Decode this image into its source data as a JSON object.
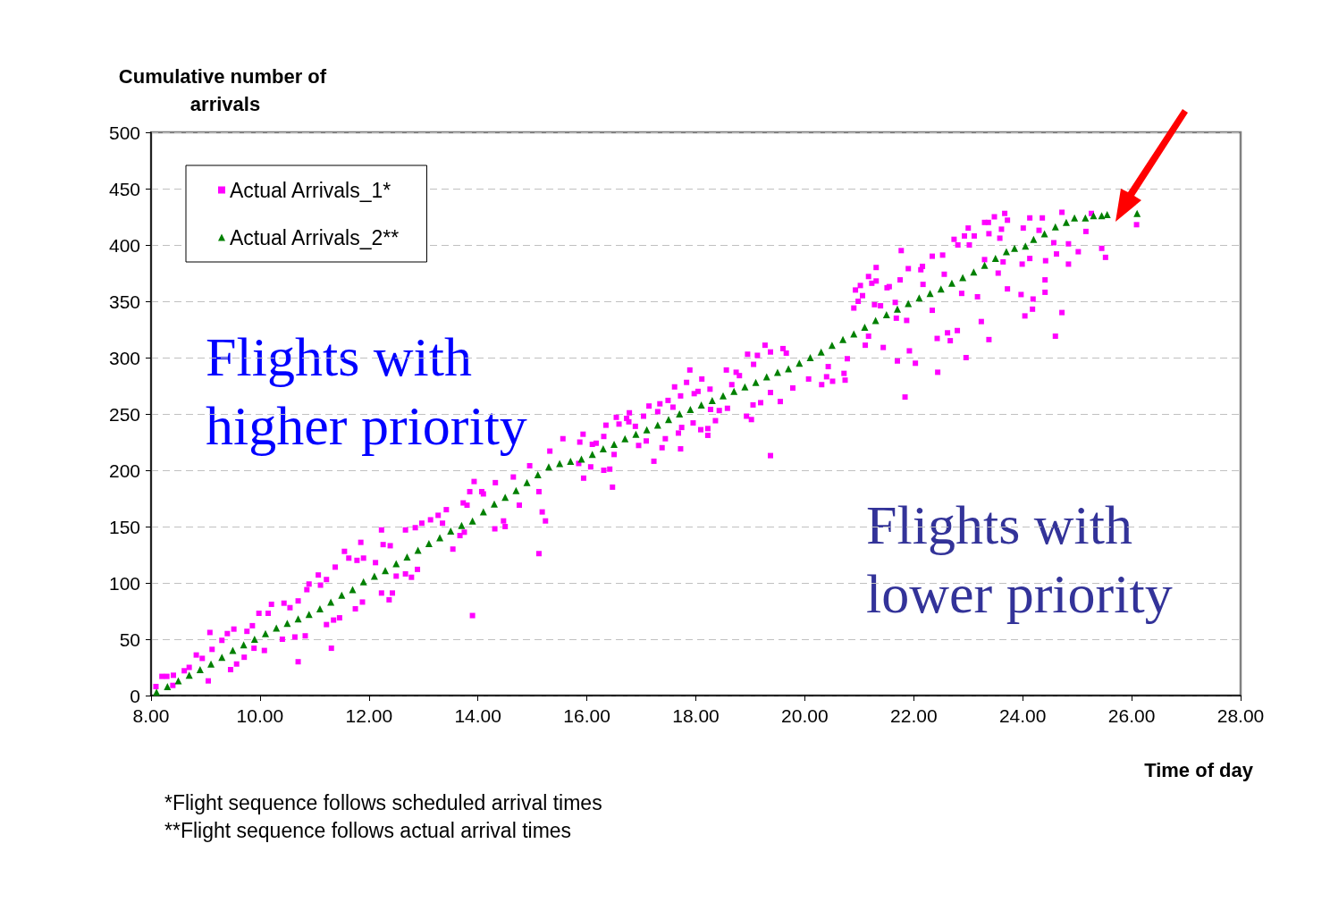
{
  "chart_data": {
    "type": "scatter",
    "ylabel": "Cumulative number of arrivals",
    "xlabel": "Time of day",
    "xlim": [
      8,
      28
    ],
    "xticks": [
      {
        "value": 8,
        "label": "8.00"
      },
      {
        "value": 10,
        "label": "10.00"
      },
      {
        "value": 12,
        "label": "12.00"
      },
      {
        "value": 14,
        "label": "14.00"
      },
      {
        "value": 16,
        "label": "16.00"
      },
      {
        "value": 18,
        "label": "18.00"
      },
      {
        "value": 20,
        "label": "20.00"
      },
      {
        "value": 22,
        "label": "22.00"
      },
      {
        "value": 24,
        "label": "24.00"
      },
      {
        "value": 26,
        "label": "26.00"
      },
      {
        "value": 28,
        "label": "28.00"
      }
    ],
    "ylim": [
      0,
      500
    ],
    "yticks": [
      0,
      50,
      100,
      150,
      200,
      250,
      300,
      350,
      400,
      450,
      500
    ],
    "grid": "y",
    "legend": "top left",
    "annotations": [
      "Flights with higher priority",
      "Flights with lower priority",
      "*Flight sequence follows scheduled arrival times",
      "**Flight sequence follows actual arrival times"
    ],
    "series": [
      {
        "name": "Actual Arrivals_1*",
        "color": "#ff00ff",
        "marker": "square",
        "x": [
          8.09,
          8.2,
          8.29,
          8.41,
          8.4,
          8.61,
          8.7,
          8.83,
          8.94,
          9.08,
          9.05,
          9.12,
          9.3,
          9.4,
          9.52,
          9.46,
          9.57,
          9.71,
          9.76,
          9.86,
          9.89,
          10.08,
          9.98,
          10.15,
          10.21,
          10.41,
          10.44,
          10.55,
          10.64,
          10.7,
          10.7,
          10.83,
          10.86,
          10.9,
          11.07,
          11.11,
          11.22,
          11.22,
          11.31,
          11.38,
          11.35,
          11.46,
          11.55,
          11.63,
          11.78,
          11.85,
          11.9,
          11.75,
          11.88,
          12.12,
          12.23,
          12.23,
          12.26,
          12.39,
          12.5,
          12.37,
          12.43,
          12.67,
          12.67,
          12.78,
          12.85,
          12.89,
          12.97,
          13.13,
          13.27,
          13.35,
          13.42,
          13.54,
          13.67,
          13.75,
          13.73,
          13.8,
          13.9,
          13.93,
          13.85,
          14.07,
          14.1,
          14.32,
          14.31,
          14.5,
          14.47,
          14.65,
          14.76,
          14.95,
          15.12,
          15.18,
          15.12,
          15.24,
          15.32,
          15.56,
          15.93,
          15.87,
          15.85,
          15.94,
          16.07,
          16.1,
          16.17,
          16.31,
          16.35,
          16.31,
          16.42,
          16.47,
          16.5,
          16.54,
          16.59,
          16.73,
          16.78,
          16.77,
          16.89,
          16.95,
          17.04,
          17.09,
          17.14,
          17.23,
          17.3,
          17.34,
          17.38,
          17.44,
          17.49,
          17.58,
          17.61,
          17.68,
          17.72,
          17.72,
          17.74,
          17.83,
          17.89,
          17.95,
          17.97,
          18.04,
          18.09,
          18.11,
          18.22,
          18.26,
          18.22,
          18.27,
          18.36,
          18.43,
          18.56,
          18.58,
          18.66,
          18.74,
          18.8,
          18.93,
          18.95,
          19.02,
          19.05,
          19.06,
          19.13,
          19.19,
          19.27,
          19.37,
          19.37,
          19.37,
          19.55,
          19.6,
          19.66,
          19.78,
          20.07,
          20.31,
          20.4,
          20.43,
          20.51,
          20.72,
          20.74,
          20.78,
          20.9,
          20.93,
          21.02,
          21.06,
          20.98,
          21.11,
          21.17,
          21.17,
          21.23,
          21.28,
          21.31,
          21.31,
          21.39,
          21.44,
          21.51,
          21.55,
          21.66,
          21.68,
          21.7,
          21.75,
          21.77,
          21.84,
          21.87,
          21.9,
          21.92,
          22.03,
          22.13,
          22.16,
          22.17,
          22.34,
          22.34,
          22.43,
          22.44,
          22.53,
          22.56,
          22.62,
          22.67,
          22.74,
          22.8,
          22.81,
          22.88,
          22.93,
          22.96,
          23,
          23.02,
          23.11,
          23.17,
          23.24,
          23.3,
          23.3,
          23.37,
          23.38,
          23.38,
          23.48,
          23.55,
          23.58,
          23.61,
          23.64,
          23.67,
          23.72,
          23.72,
          23.97,
          23.99,
          24.01,
          24.04,
          24.13,
          24.13,
          24.18,
          24.19,
          24.3,
          24.36,
          24.41,
          24.41,
          24.42,
          24.57,
          24.6,
          24.62,
          24.72,
          24.72,
          24.84,
          24.84,
          25.02,
          25.16,
          25.26,
          25.45,
          25.52,
          26.09
        ],
        "values": [
          8,
          17,
          17,
          18,
          9,
          22,
          25,
          36,
          33,
          56,
          13,
          41,
          49,
          55,
          59,
          23,
          28,
          34,
          57,
          62,
          42,
          40,
          73,
          73,
          81,
          50,
          82,
          78,
          52,
          84,
          30,
          53,
          94,
          99,
          107,
          98,
          103,
          63,
          42,
          114,
          67,
          69,
          128,
          122,
          120,
          136,
          122,
          77,
          83,
          118,
          147,
          91,
          134,
          133,
          106,
          85,
          91,
          147,
          108,
          105,
          149,
          112,
          153,
          156,
          160,
          153,
          165,
          130,
          142,
          145,
          171,
          169,
          71,
          190,
          181,
          181,
          179,
          189,
          148,
          150,
          155,
          194,
          169,
          204,
          181,
          163,
          126,
          155,
          217,
          228,
          232,
          225,
          206,
          193,
          203,
          223,
          224,
          230,
          240,
          200,
          201,
          185,
          214,
          247,
          241,
          246,
          251,
          243,
          239,
          222,
          248,
          226,
          257,
          208,
          252,
          259,
          220,
          228,
          262,
          256,
          274,
          233,
          219,
          266,
          238,
          278,
          289,
          242,
          268,
          270,
          236,
          281,
          237,
          272,
          231,
          254,
          244,
          253,
          289,
          255,
          276,
          287,
          284,
          248,
          303,
          245,
          258,
          294,
          302,
          260,
          311,
          213,
          269,
          305,
          261,
          308,
          304,
          273,
          281,
          276,
          283,
          292,
          279,
          286,
          280,
          299,
          344,
          360,
          364,
          355,
          350,
          311,
          319,
          372,
          366,
          347,
          380,
          368,
          346,
          309,
          362,
          363,
          349,
          335,
          297,
          369,
          395,
          265,
          333,
          379,
          306,
          295,
          378,
          381,
          365,
          342,
          390,
          317,
          287,
          391,
          374,
          322,
          315,
          405,
          324,
          400,
          357,
          408,
          300,
          415,
          400,
          408,
          354,
          332,
          420,
          387,
          420,
          410,
          316,
          425,
          375,
          406,
          414,
          385,
          428,
          422,
          361,
          356,
          383,
          415,
          337,
          424,
          388,
          343,
          352,
          413,
          424,
          369,
          358,
          386,
          402,
          319,
          392,
          340,
          429,
          401,
          383,
          394,
          412,
          428,
          397,
          389,
          418
        ]
      },
      {
        "name": "Actual Arrivals_2**",
        "color": "#008000",
        "marker": "triangle",
        "x": [
          8.1,
          8.3,
          8.5,
          8.7,
          8.9,
          9.1,
          9.3,
          9.5,
          9.7,
          9.9,
          10.1,
          10.3,
          10.5,
          10.7,
          10.9,
          11.1,
          11.3,
          11.5,
          11.7,
          11.9,
          12.1,
          12.3,
          12.5,
          12.7,
          12.9,
          13.1,
          13.3,
          13.5,
          13.7,
          13.9,
          14.1,
          14.3,
          14.5,
          14.7,
          14.9,
          15.1,
          15.3,
          15.5,
          15.7,
          15.9,
          16.1,
          16.3,
          16.5,
          16.7,
          16.9,
          17.1,
          17.3,
          17.5,
          17.7,
          17.9,
          18.1,
          18.3,
          18.5,
          18.7,
          18.9,
          19.1,
          19.3,
          19.5,
          19.7,
          19.9,
          20.1,
          20.3,
          20.5,
          20.7,
          20.9,
          21.1,
          21.3,
          21.5,
          21.7,
          21.9,
          22.1,
          22.3,
          22.5,
          22.7,
          22.9,
          23.1,
          23.3,
          23.5,
          23.7,
          23.85,
          24.05,
          24.2,
          24.4,
          24.6,
          24.8,
          24.95,
          25.15,
          25.3,
          25.45,
          25.55,
          26.1
        ],
        "values": [
          3,
          8,
          13,
          18,
          23,
          28,
          34,
          40,
          45,
          50,
          55,
          60,
          64,
          68,
          72,
          77,
          83,
          89,
          94,
          101,
          106,
          111,
          117,
          123,
          129,
          135,
          140,
          146,
          151,
          155,
          163,
          170,
          176,
          182,
          189,
          196,
          203,
          206,
          208,
          210,
          214,
          219,
          223,
          228,
          232,
          236,
          240,
          245,
          250,
          254,
          258,
          262,
          266,
          270,
          274,
          278,
          283,
          287,
          290,
          295,
          300,
          305,
          311,
          316,
          321,
          327,
          333,
          338,
          343,
          348,
          353,
          357,
          361,
          366,
          371,
          376,
          382,
          388,
          394,
          397,
          399,
          405,
          410,
          416,
          420,
          424,
          424,
          426,
          426,
          427,
          428
        ]
      }
    ]
  }
}
